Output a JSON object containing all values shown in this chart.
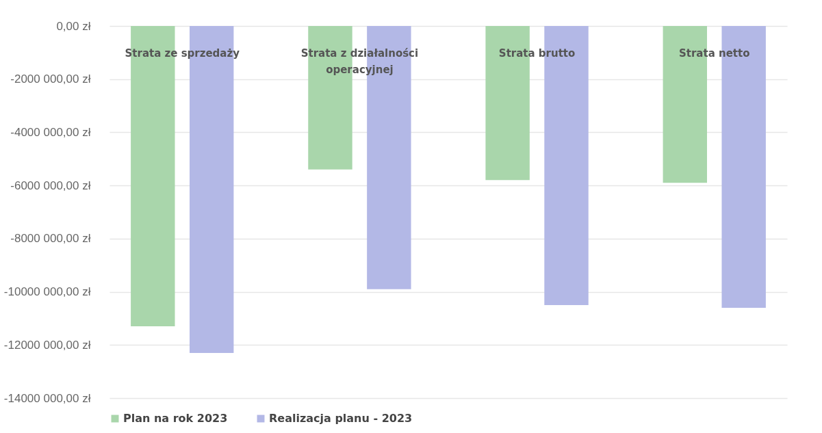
{
  "chart_data": {
    "type": "bar",
    "categories": [
      "Strata ze sprzedaży",
      "Strata z działalności operacyjnej",
      "Strata brutto",
      "Strata netto"
    ],
    "series": [
      {
        "name": "Plan na rok 2023",
        "color": "#a9d6ab",
        "values": [
          -11300000,
          -5400000,
          -5800000,
          -5900000
        ]
      },
      {
        "name": "Realizacja planu  - 2023",
        "color": "#b3b8e6",
        "values": [
          -12300000,
          -9900000,
          -10500000,
          -10600000
        ]
      }
    ],
    "ylim": [
      -14000000,
      0
    ],
    "yticks": [
      {
        "value": -14000000,
        "label": "-14000 000,00 zł"
      },
      {
        "value": -12000000,
        "label": "-12000 000,00 zł"
      },
      {
        "value": -10000000,
        "label": "-10000 000,00 zł"
      },
      {
        "value": -8000000,
        "label": "-8000 000,00 zł"
      },
      {
        "value": -6000000,
        "label": "-6000 000,00 zł"
      },
      {
        "value": -4000000,
        "label": "-4000 000,00 zł"
      },
      {
        "value": -2000000,
        "label": "-2000 000,00 zł"
      },
      {
        "value": 0,
        "label": "0,00 zł"
      }
    ],
    "grid": "y",
    "legend": "bottom"
  }
}
